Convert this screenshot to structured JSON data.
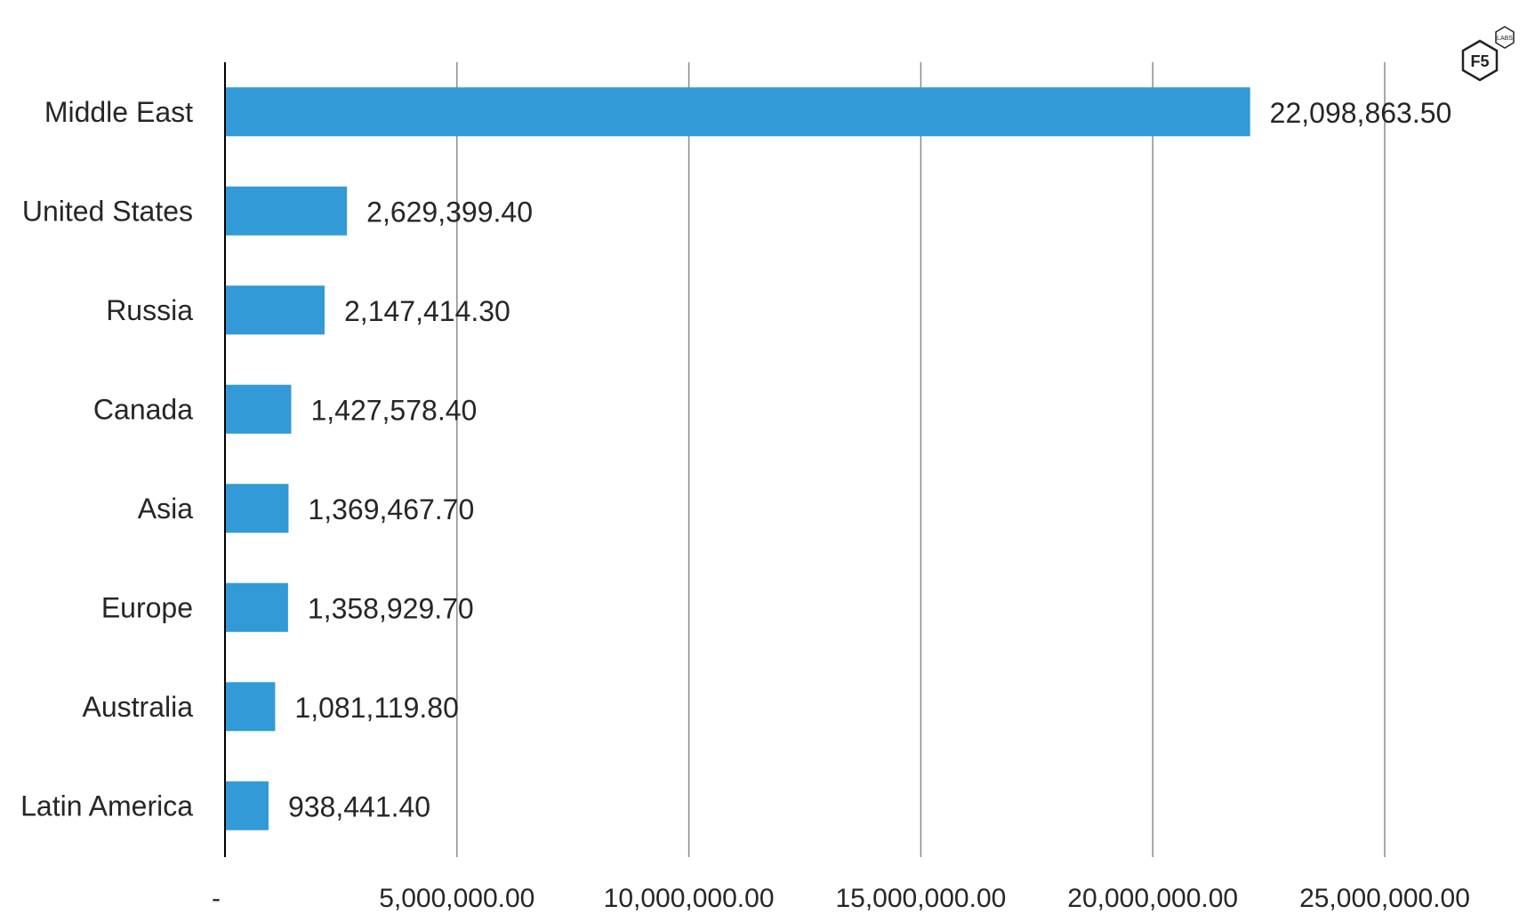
{
  "chart_data": {
    "type": "bar",
    "orientation": "horizontal",
    "categories": [
      "Middle East",
      "United States",
      "Russia",
      "Canada",
      "Asia",
      "Europe",
      "Australia",
      "Latin America"
    ],
    "values": [
      22098863.5,
      2629399.4,
      2147414.3,
      1427578.4,
      1369467.7,
      1358929.7,
      1081119.8,
      938441.4
    ],
    "value_labels": [
      "22,098,863.50",
      "2,629,399.40",
      "2,147,414.30",
      "1,427,578.40",
      "1,369,467.70",
      "1,358,929.70",
      "1,081,119.80",
      "938,441.40"
    ],
    "xlim": [
      0,
      25000000
    ],
    "x_ticks": [
      0,
      5000000,
      10000000,
      15000000,
      20000000,
      25000000
    ],
    "x_tick_labels": [
      "-",
      "5,000,000.00",
      "10,000,000.00",
      "15,000,000.00",
      "20,000,000.00",
      "25,000,000.00"
    ],
    "grid": "vertical",
    "bar_color": "#329ad6",
    "title": "",
    "xlabel": "",
    "ylabel": ""
  },
  "logo": {
    "main": "F5",
    "sub": "LABS",
    "icon": "f5-labs-logo-icon"
  }
}
